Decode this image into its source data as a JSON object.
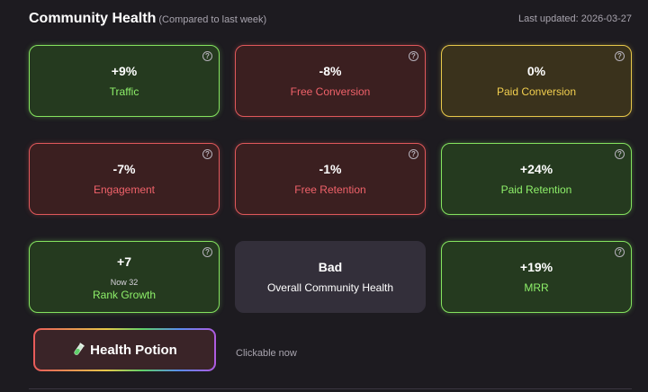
{
  "header": {
    "title": "Community Health",
    "subtitle": "(Compared to last week)",
    "last_updated": "Last updated: 2026-03-27"
  },
  "colors": {
    "background": "#1d1b20",
    "positive": "#84e35f",
    "negative": "#e0585b",
    "neutral_change": "#e8c84a",
    "overall": "#332f3a"
  },
  "cards": [
    {
      "value": "+9%",
      "label": "Traffic",
      "status": "positive",
      "help_icon": "question-circle-icon"
    },
    {
      "value": "-8%",
      "label": "Free Conversion",
      "status": "negative",
      "help_icon": "question-circle-icon"
    },
    {
      "value": "0%",
      "label": "Paid Conversion",
      "status": "neutral",
      "help_icon": "question-circle-icon"
    },
    {
      "value": "-7%",
      "label": "Engagement",
      "status": "negative",
      "help_icon": "question-circle-icon"
    },
    {
      "value": "-1%",
      "label": "Free Retention",
      "status": "negative",
      "help_icon": "question-circle-icon"
    },
    {
      "value": "+24%",
      "label": "Paid Retention",
      "status": "positive",
      "help_icon": "question-circle-icon"
    },
    {
      "value": "+7",
      "note": "Now 32",
      "label": "Rank Growth",
      "status": "positive",
      "help_icon": "question-circle-icon"
    },
    {
      "value": "Bad",
      "label": "Overall Community Health",
      "status": "overall"
    },
    {
      "value": "+19%",
      "label": "MRR",
      "status": "positive",
      "help_icon": "question-circle-icon"
    }
  ],
  "potion": {
    "label": "Health Potion",
    "icon": "test-tube-icon",
    "hint": "Clickable now"
  }
}
